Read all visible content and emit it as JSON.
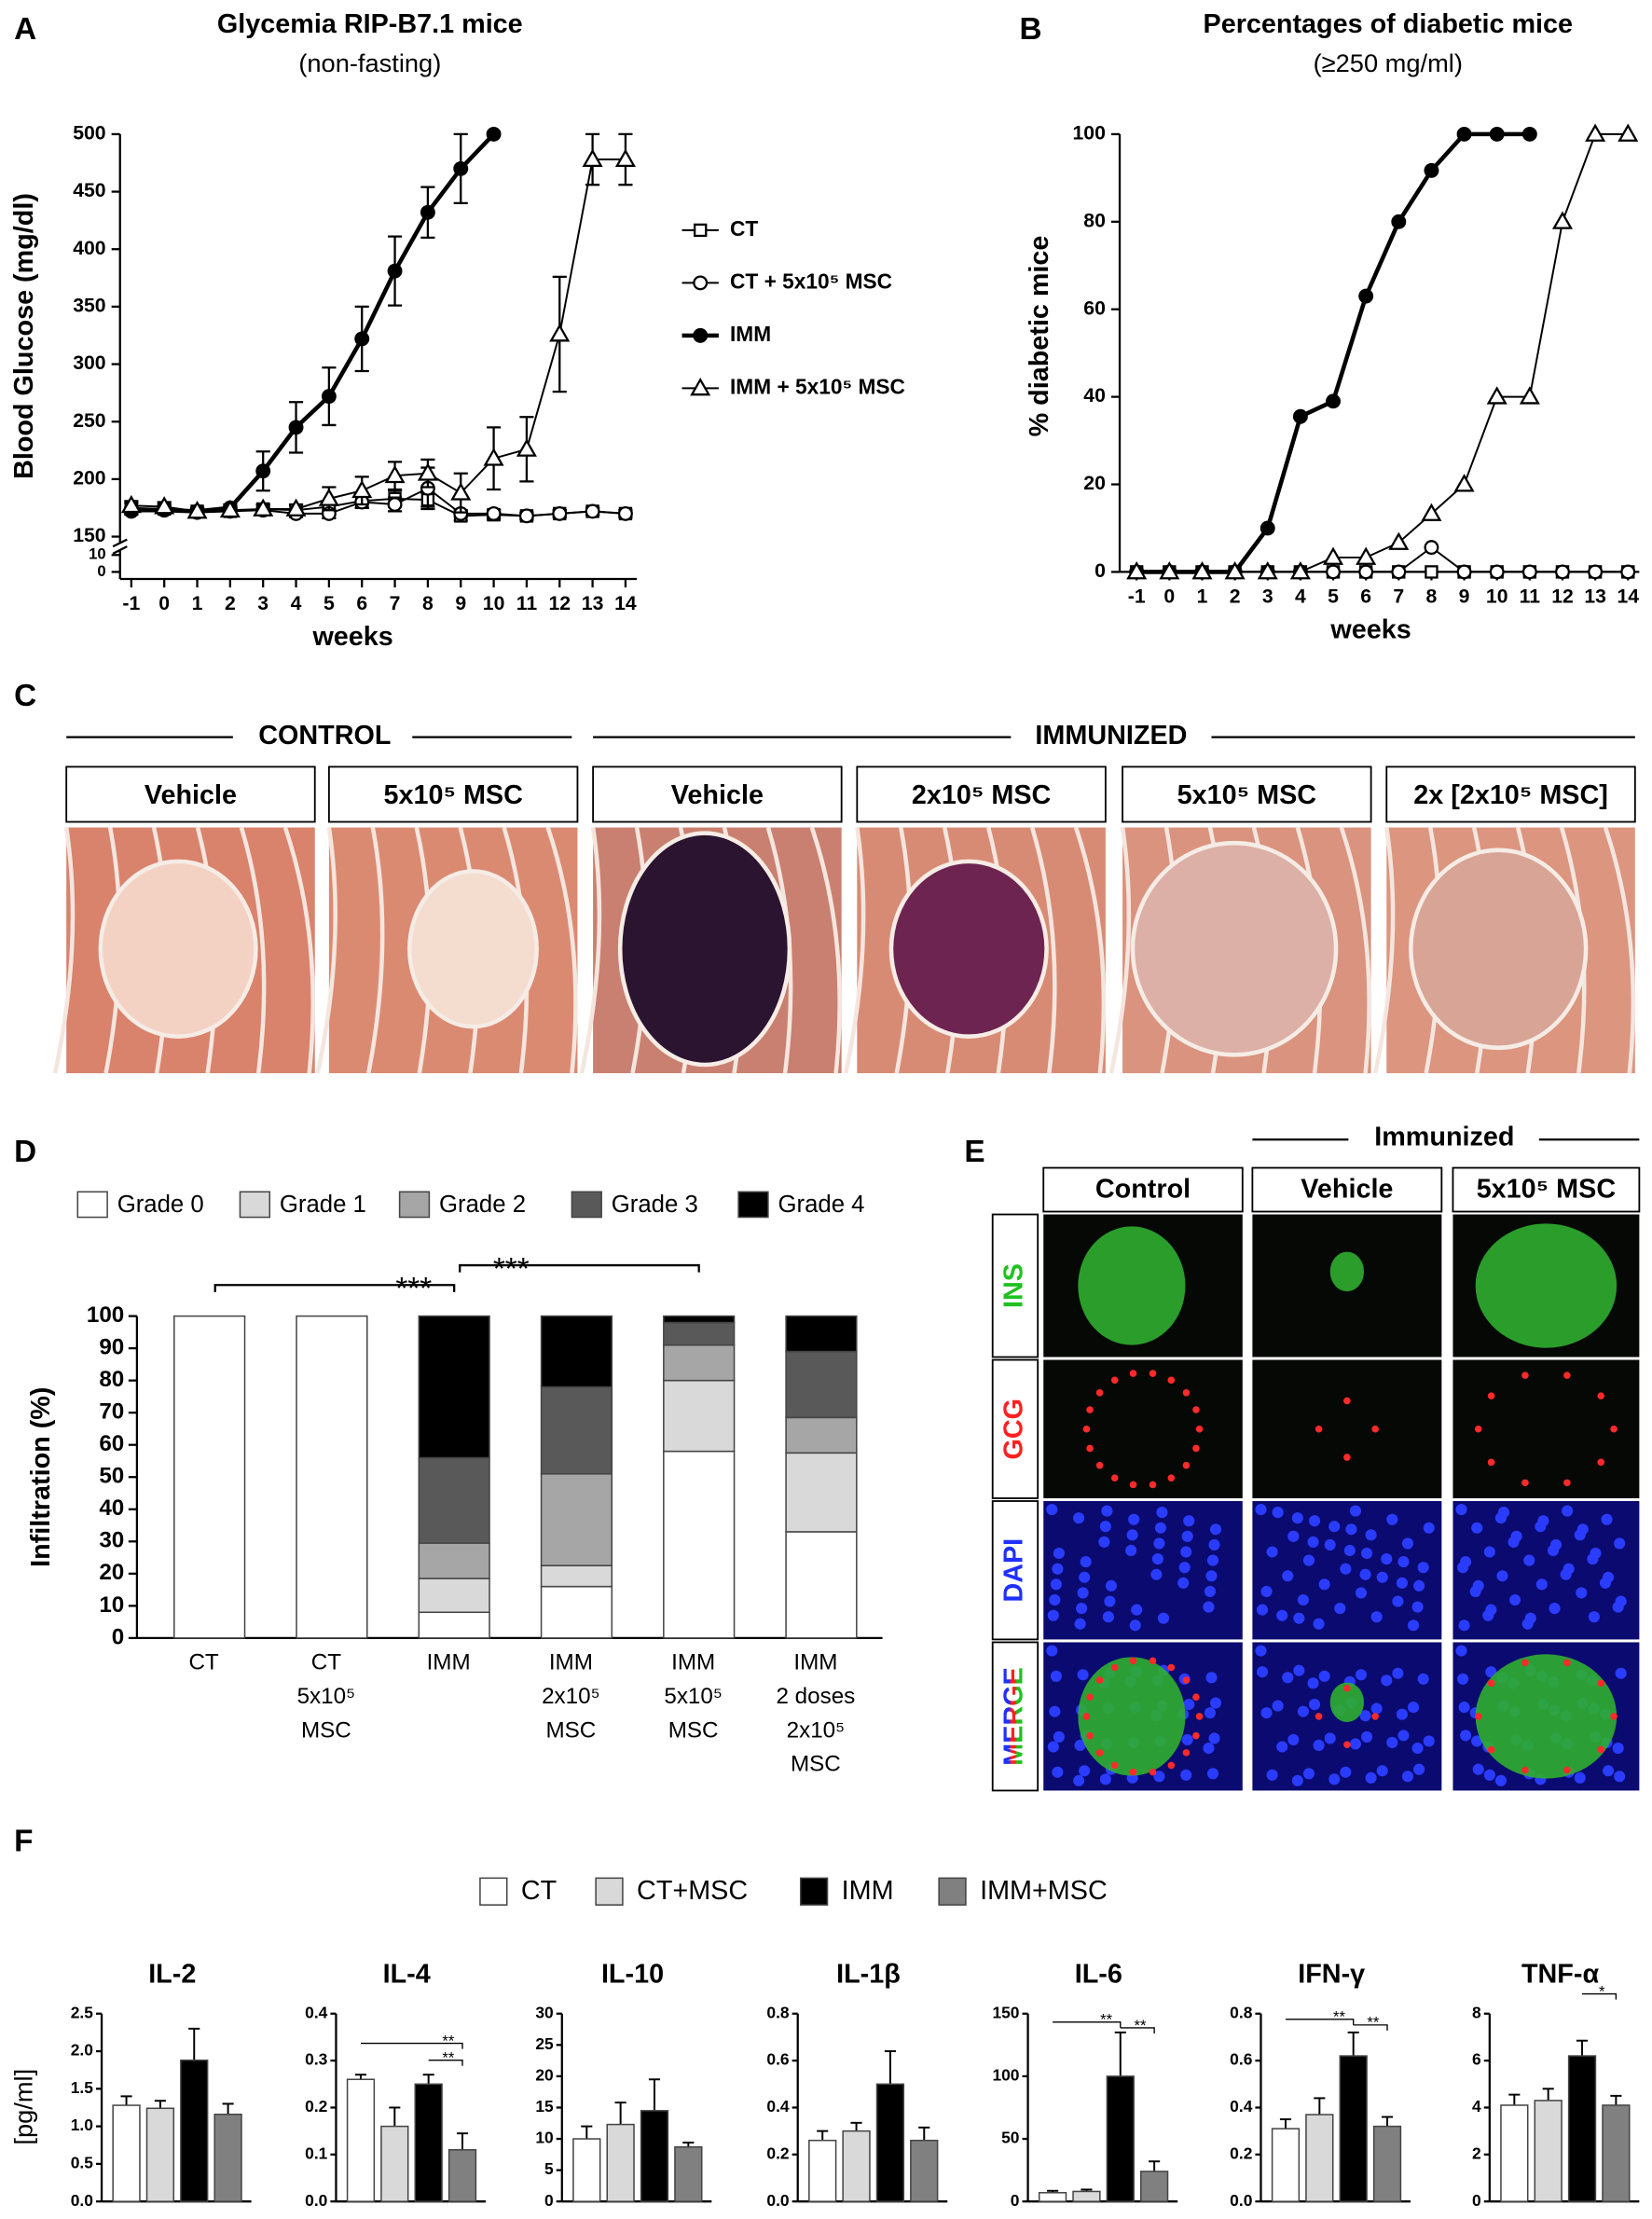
{
  "panel_labels": [
    "A",
    "B",
    "C",
    "D",
    "E",
    "F"
  ],
  "chart_data": [
    {
      "type": "line",
      "title": "Glycemia RIP-B7.1 mice",
      "subtitle": "(non-fasting)",
      "x_label": "weeks",
      "y_label": "Blood Glucose (mg/dl)",
      "x": [
        -1,
        0,
        1,
        2,
        3,
        4,
        5,
        6,
        7,
        8,
        9,
        10,
        11,
        12,
        13,
        14
      ],
      "xlim": [
        -1,
        14
      ],
      "xticks": [
        -1,
        0,
        1,
        2,
        3,
        4,
        5,
        6,
        7,
        8,
        9,
        10,
        11,
        12,
        13,
        14
      ],
      "ylim": [
        150,
        500
      ],
      "yticks": [
        150,
        200,
        250,
        300,
        350,
        400,
        450,
        500
      ],
      "ybreak_lim": [
        0,
        10
      ],
      "ybreak_ticks": [
        0,
        10
      ],
      "series": [
        {
          "name": "CT",
          "color": "#000000",
          "marker": "square-open",
          "values": [
            175,
            174,
            172,
            172,
            174,
            173,
            176,
            181,
            183,
            182,
            168,
            169,
            168,
            170,
            172,
            170
          ],
          "errors": [
            4,
            4,
            3,
            3,
            4,
            4,
            5,
            6,
            7,
            6,
            4,
            4,
            3,
            3,
            3,
            3
          ]
        },
        {
          "name": "CT + 5x10⁵ MSC",
          "color": "#000000",
          "marker": "circle-open",
          "values": [
            172,
            174,
            171,
            172,
            173,
            170,
            170,
            180,
            178,
            192,
            170,
            170,
            168,
            170,
            172,
            170
          ],
          "errors": [
            3,
            3,
            3,
            3,
            3,
            3,
            4,
            5,
            6,
            18,
            3,
            3,
            3,
            3,
            3,
            3
          ]
        },
        {
          "name": "IMM",
          "color": "#000000",
          "marker": "circle-filled",
          "values": [
            173,
            173,
            172,
            175,
            207,
            245,
            272,
            322,
            381,
            432,
            470,
            500,
            null,
            null,
            null,
            null
          ],
          "errors": [
            3,
            3,
            3,
            3,
            17,
            22,
            25,
            28,
            30,
            22,
            30,
            0,
            null,
            null,
            null,
            null
          ]
        },
        {
          "name": "IMM + 5x10⁵ MSC",
          "color": "#000000",
          "marker": "triangle-open",
          "values": [
            177,
            176,
            172,
            173,
            174,
            174,
            183,
            190,
            203,
            205,
            188,
            218,
            226,
            326,
            478,
            478
          ],
          "errors": [
            4,
            4,
            3,
            3,
            4,
            4,
            10,
            12,
            12,
            12,
            17,
            27,
            28,
            50,
            22,
            22
          ]
        }
      ]
    },
    {
      "type": "line",
      "title": "Percentages of diabetic mice",
      "subtitle": "(≥250 mg/ml)",
      "x_label": "weeks",
      "y_label": "% diabetic mice",
      "x": [
        -1,
        0,
        1,
        2,
        3,
        4,
        5,
        6,
        7,
        8,
        9,
        10,
        11,
        12,
        13,
        14
      ],
      "xlim": [
        -1,
        14
      ],
      "xticks": [
        -1,
        0,
        1,
        2,
        3,
        4,
        5,
        6,
        7,
        8,
        9,
        10,
        11,
        12,
        13,
        14
      ],
      "ylim": [
        0,
        100
      ],
      "yticks": [
        0,
        20,
        40,
        60,
        80,
        100
      ],
      "series": [
        {
          "color": "#000000",
          "marker": "square-open",
          "values": [
            0,
            0,
            0,
            0,
            0,
            0,
            0,
            0,
            0,
            0,
            0,
            0,
            0,
            0,
            0,
            0
          ]
        },
        {
          "color": "#000000",
          "marker": "circle-open",
          "values": [
            0,
            0,
            0,
            0,
            0,
            0,
            0,
            0,
            0,
            5.6,
            0,
            0,
            0,
            0,
            0,
            0
          ]
        },
        {
          "color": "#000000",
          "marker": "circle-filled",
          "values": [
            0,
            0,
            0,
            0,
            10,
            35.5,
            39,
            63,
            80,
            91.7,
            100,
            100,
            100,
            null,
            null,
            null
          ]
        },
        {
          "color": "#000000",
          "marker": "triangle-open",
          "values": [
            0,
            0,
            0,
            0,
            0,
            0,
            3.3,
            3.3,
            6.7,
            13.3,
            20,
            40,
            40,
            80,
            100,
            100
          ]
        }
      ]
    },
    {
      "type": "stacked-bar",
      "y_label": "Infiltration (%)",
      "categories": [
        [
          "CT"
        ],
        [
          "CT",
          "5x10⁵",
          "MSC"
        ],
        [
          "IMM"
        ],
        [
          "IMM",
          "2x10⁵",
          "MSC"
        ],
        [
          "IMM",
          "5x10⁵",
          "MSC"
        ],
        [
          "IMM",
          "2 doses",
          "2x10⁵",
          "MSC"
        ]
      ],
      "ylim": [
        0,
        100
      ],
      "yticks": [
        0,
        10,
        20,
        30,
        40,
        50,
        60,
        70,
        80,
        90,
        100
      ],
      "series": [
        {
          "name": "Grade 0",
          "color": "#ffffff",
          "values": [
            100,
            100,
            8,
            16,
            58,
            33
          ]
        },
        {
          "name": "Grade 1",
          "color": "#d9d9d9",
          "values": [
            0,
            0,
            10.5,
            6.5,
            22,
            24.5
          ]
        },
        {
          "name": "Grade 2",
          "color": "#a6a6a6",
          "values": [
            0,
            0,
            11,
            28.5,
            11,
            11
          ]
        },
        {
          "name": "Grade 3",
          "color": "#595959",
          "values": [
            0,
            0,
            26.5,
            27,
            7,
            20.5
          ]
        },
        {
          "name": "Grade 4",
          "color": "#000000",
          "values": [
            0,
            0,
            44,
            22,
            2,
            11
          ]
        }
      ],
      "annotations": [
        "***",
        "***"
      ]
    },
    {
      "type": "bar-panels",
      "y_label": "[pg/ml]",
      "legend": [
        {
          "name": "CT",
          "color": "#ffffff"
        },
        {
          "name": "CT+MSC",
          "color": "#d9d9d9"
        },
        {
          "name": "IMM",
          "color": "#000000"
        },
        {
          "name": "IMM+MSC",
          "color": "#808080"
        }
      ],
      "panels": [
        {
          "title": "IL-2",
          "ylim": [
            0,
            2.5
          ],
          "yticks": [
            {
              "value": 0,
              "label": "0.0"
            },
            0.5,
            {
              "value": 1,
              "label": "1.0"
            },
            1.5,
            {
              "value": 2,
              "label": "2.0"
            },
            2.5
          ],
          "values": [
            1.28,
            1.24,
            1.88,
            1.16
          ],
          "errors": [
            0.12,
            0.1,
            0.42,
            0.14
          ],
          "annotations": []
        },
        {
          "title": "IL-4",
          "ylim": [
            0,
            0.4
          ],
          "yticks": [
            {
              "value": 0,
              "label": "0.0"
            },
            0.1,
            0.2,
            0.3,
            0.4
          ],
          "values": [
            0.26,
            0.16,
            0.25,
            0.11
          ],
          "errors": [
            0.01,
            0.04,
            0.02,
            0.035
          ],
          "annotations": [
            "**",
            "**"
          ]
        },
        {
          "title": "IL-10",
          "ylim": [
            0,
            30
          ],
          "yticks": [
            0,
            5,
            10,
            15,
            20,
            25,
            30
          ],
          "values": [
            10,
            12.3,
            14.5,
            8.7
          ],
          "errors": [
            2,
            3.5,
            5,
            0.7
          ],
          "annotations": []
        },
        {
          "title": "IL-1β",
          "ylim": [
            0,
            0.8
          ],
          "yticks": [
            {
              "value": 0,
              "label": "0.0"
            },
            0.2,
            0.4,
            0.6,
            0.8
          ],
          "values": [
            0.26,
            0.3,
            0.5,
            0.26
          ],
          "errors": [
            0.04,
            0.035,
            0.14,
            0.055
          ],
          "annotations": []
        },
        {
          "title": "IL-6",
          "ylim": [
            0,
            150
          ],
          "yticks": [
            0,
            50,
            100,
            150
          ],
          "values": [
            7,
            8,
            100,
            24
          ],
          "errors": [
            1.5,
            1.5,
            35,
            8
          ],
          "annotations": [
            "**",
            "**"
          ]
        },
        {
          "title": "IFN-γ",
          "ylim": [
            0,
            0.8
          ],
          "yticks": [
            {
              "value": 0,
              "label": "0.0"
            },
            0.2,
            0.4,
            0.6,
            0.8
          ],
          "values": [
            0.31,
            0.37,
            0.62,
            0.32
          ],
          "errors": [
            0.04,
            0.07,
            0.1,
            0.04
          ],
          "annotations": [
            "**",
            "**"
          ]
        },
        {
          "title": "TNF-α",
          "ylim": [
            0,
            8
          ],
          "yticks": [
            0,
            2,
            4,
            6,
            8
          ],
          "values": [
            4.1,
            4.3,
            6.2,
            4.1
          ],
          "errors": [
            0.45,
            0.5,
            0.65,
            0.4
          ],
          "annotations": [
            "*"
          ]
        }
      ]
    }
  ],
  "histology": {
    "groups": [
      "CONTROL",
      "IMMUNIZED"
    ],
    "panels": [
      "Vehicle",
      "5x10⁵ MSC",
      "Vehicle",
      "2x10⁵ MSC",
      "5x10⁵ MSC",
      "2x [2x10⁵ MSC]"
    ]
  },
  "immunofluorescence": {
    "group": "Immunized",
    "columns": [
      "Control",
      "Vehicle",
      "5x10⁵ MSC"
    ],
    "rows": [
      "INS",
      "GCG",
      "DAPI",
      "MERGE"
    ]
  }
}
